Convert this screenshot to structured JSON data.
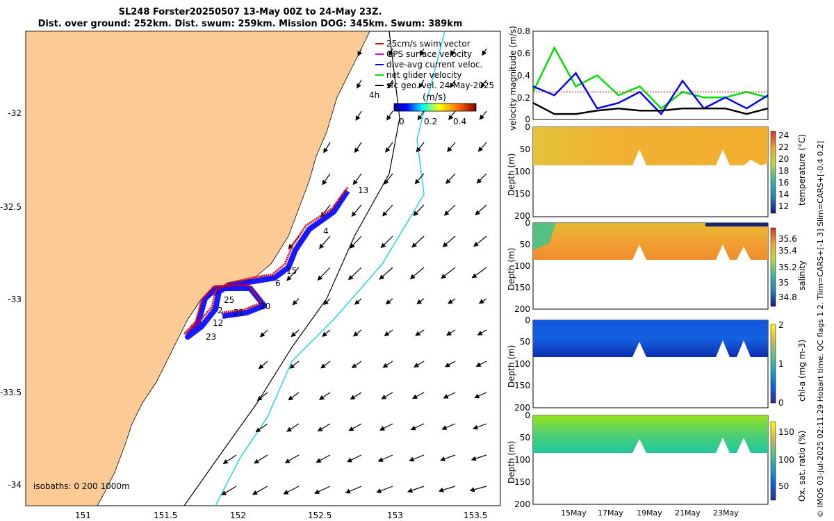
{
  "title_line1": "SL248 Forster20250507 13-May 00Z to 24-May 23Z.",
  "title_line2": "Dist. over ground: 252km. Dist. swum: 259km. Mission DOG: 345km. Swum: 389km",
  "map": {
    "x_ticks": [
      "151",
      "151.5",
      "152",
      "152.5",
      "153",
      "153.5"
    ],
    "y_ticks": [
      "-32",
      "-32.5",
      "-33",
      "-33.5",
      "-34"
    ],
    "isobath_note": "isobaths: 0 200 1000m",
    "legend": [
      {
        "label": "25cm/s swim vector",
        "color": "#e00000"
      },
      {
        "label": "GPS surface velocity",
        "color": "#d000d0"
      },
      {
        "label": "dive-avg current veloc.",
        "color": "#0000ff"
      },
      {
        "label": "net glider velocity",
        "color": "#00e000"
      },
      {
        "label": "sfc geo. vel. 24-May-2025",
        "color": "#000000"
      }
    ],
    "legend_extra": "4h",
    "colorbar_unit": "(m/s)",
    "colorbar_ticks": [
      "0",
      "0.2",
      "0.4"
    ],
    "track_labels": [
      "13",
      "4",
      "15",
      "6",
      "25",
      "20",
      "2",
      "21",
      "12",
      "23"
    ],
    "colors": {
      "land": "#fccb95",
      "track_red": "#e00000",
      "track_blue": "#0000ff",
      "isobath_200": "#000000",
      "isobath_1000": "#22d5de"
    }
  },
  "panels": [
    {
      "ylabel": "velocity magnitude (m/s)",
      "y_ticks": [
        "0",
        "0.2",
        "0.4",
        "0.6",
        "0.8"
      ]
    },
    {
      "ylabel": "Depth (m)",
      "y_ticks": [
        "0",
        "50",
        "100",
        "150",
        "200"
      ],
      "cb_label": "temperature (°C)",
      "cb_ticks": [
        "24",
        "22",
        "20",
        "18",
        "16",
        "14",
        "12"
      ]
    },
    {
      "ylabel": "Depth (m)",
      "y_ticks": [
        "0",
        "50",
        "100",
        "150",
        "200"
      ],
      "cb_label": "salinity",
      "cb_ticks": [
        "35.6",
        "35.4",
        "35.2",
        "35",
        "34.8"
      ]
    },
    {
      "ylabel": "Depth (m)",
      "y_ticks": [
        "0",
        "50",
        "100",
        "150",
        "200"
      ],
      "cb_label": "chl-a (mg m-3)",
      "cb_ticks": [
        "2",
        "1",
        "0"
      ]
    },
    {
      "ylabel": "Depth (m)",
      "y_ticks": [
        "0",
        "50",
        "100",
        "150",
        "200"
      ],
      "cb_label": "Ox. sat. ratio (%)",
      "cb_ticks": [
        "150",
        "100",
        "50"
      ]
    }
  ],
  "date_ticks": [
    "15May",
    "17May",
    "19May",
    "21May",
    "23May"
  ],
  "footer_note": "© IMOS 03-Jul-2025 02:11:29 Hobart time. QC flags 1  2. Tlim=CARS+[-1 3] Slim=CARS+[-0.4 0.2]",
  "chart_data": {
    "type": "line",
    "title": "velocity magnitude",
    "xlabel": "",
    "ylabel": "velocity magnitude (m/s)",
    "ylim": [
      0,
      0.8
    ],
    "x": [
      "13May",
      "14May",
      "15May",
      "16May",
      "17May",
      "18May",
      "19May",
      "20May",
      "21May",
      "22May",
      "23May",
      "24May"
    ],
    "series": [
      {
        "name": "net glider velocity",
        "color": "#00e000",
        "values": [
          0.25,
          0.65,
          0.3,
          0.4,
          0.22,
          0.3,
          0.1,
          0.25,
          0.2,
          0.2,
          0.25,
          0.2
        ]
      },
      {
        "name": "dive-avg current veloc.",
        "color": "#0000ff",
        "values": [
          0.3,
          0.22,
          0.42,
          0.1,
          0.15,
          0.25,
          0.05,
          0.35,
          0.1,
          0.2,
          0.1,
          0.22
        ]
      },
      {
        "name": "sfc geo. vel.",
        "color": "#000000",
        "values": [
          0.15,
          0.05,
          0.05,
          0.08,
          0.1,
          0.08,
          0.08,
          0.1,
          0.1,
          0.1,
          0.05,
          0.1
        ]
      },
      {
        "name": "25cm/s swim vector",
        "color": "#e00000",
        "values": [
          0.25,
          0.25,
          0.25,
          0.25,
          0.25,
          0.25,
          0.25,
          0.25,
          0.25,
          0.25,
          0.25,
          0.25
        ]
      }
    ]
  }
}
